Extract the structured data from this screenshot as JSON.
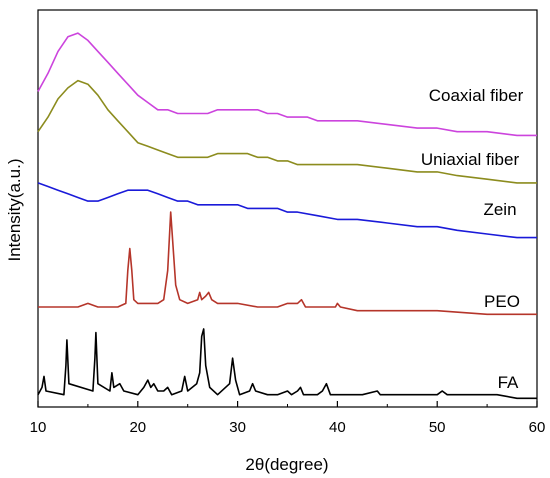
{
  "chart_data": {
    "type": "line",
    "title": "",
    "xlabel": "2θ(degree)",
    "ylabel": "Intensity(a.u.)",
    "xlim": [
      10,
      60
    ],
    "x_ticks": [
      "10",
      "20",
      "30",
      "40",
      "50",
      "60"
    ],
    "y_ticks": [],
    "grid": false,
    "legend": "inline labels at right",
    "series": [
      {
        "name": "Coaxial fiber",
        "color": "#cc44dd",
        "points": [
          [
            10,
            0.85
          ],
          [
            11,
            0.9
          ],
          [
            12,
            0.96
          ],
          [
            13,
            1.0
          ],
          [
            14,
            1.01
          ],
          [
            15,
            0.99
          ],
          [
            16,
            0.96
          ],
          [
            17,
            0.93
          ],
          [
            18,
            0.9
          ],
          [
            19,
            0.87
          ],
          [
            20,
            0.84
          ],
          [
            21,
            0.82
          ],
          [
            22,
            0.8
          ],
          [
            23,
            0.8
          ],
          [
            24,
            0.79
          ],
          [
            25,
            0.79
          ],
          [
            26,
            0.79
          ],
          [
            27,
            0.79
          ],
          [
            28,
            0.8
          ],
          [
            29,
            0.8
          ],
          [
            30,
            0.8
          ],
          [
            31,
            0.8
          ],
          [
            32,
            0.8
          ],
          [
            33,
            0.79
          ],
          [
            34,
            0.79
          ],
          [
            35,
            0.78
          ],
          [
            36,
            0.78
          ],
          [
            37,
            0.78
          ],
          [
            38,
            0.77
          ],
          [
            40,
            0.77
          ],
          [
            42,
            0.77
          ],
          [
            45,
            0.76
          ],
          [
            48,
            0.75
          ],
          [
            50,
            0.75
          ],
          [
            52,
            0.74
          ],
          [
            55,
            0.74
          ],
          [
            58,
            0.73
          ],
          [
            60,
            0.73
          ]
        ]
      },
      {
        "name": "Uniaxial fiber",
        "color": "#8c8c1e",
        "points": [
          [
            10,
            0.74
          ],
          [
            11,
            0.78
          ],
          [
            12,
            0.83
          ],
          [
            13,
            0.86
          ],
          [
            14,
            0.88
          ],
          [
            15,
            0.87
          ],
          [
            16,
            0.84
          ],
          [
            17,
            0.8
          ],
          [
            18,
            0.77
          ],
          [
            19,
            0.74
          ],
          [
            20,
            0.71
          ],
          [
            21,
            0.7
          ],
          [
            22,
            0.69
          ],
          [
            23,
            0.68
          ],
          [
            24,
            0.67
          ],
          [
            25,
            0.67
          ],
          [
            26,
            0.67
          ],
          [
            27,
            0.67
          ],
          [
            28,
            0.68
          ],
          [
            29,
            0.68
          ],
          [
            30,
            0.68
          ],
          [
            31,
            0.68
          ],
          [
            32,
            0.67
          ],
          [
            33,
            0.67
          ],
          [
            34,
            0.66
          ],
          [
            35,
            0.66
          ],
          [
            36,
            0.65
          ],
          [
            38,
            0.65
          ],
          [
            40,
            0.65
          ],
          [
            42,
            0.65
          ],
          [
            45,
            0.64
          ],
          [
            48,
            0.63
          ],
          [
            50,
            0.63
          ],
          [
            52,
            0.62
          ],
          [
            55,
            0.61
          ],
          [
            58,
            0.6
          ],
          [
            60,
            0.6
          ]
        ]
      },
      {
        "name": "Zein",
        "color": "#1a1ad9",
        "points": [
          [
            10,
            0.6
          ],
          [
            11,
            0.59
          ],
          [
            12,
            0.58
          ],
          [
            13,
            0.57
          ],
          [
            14,
            0.56
          ],
          [
            15,
            0.55
          ],
          [
            16,
            0.55
          ],
          [
            17,
            0.56
          ],
          [
            18,
            0.57
          ],
          [
            19,
            0.58
          ],
          [
            20,
            0.58
          ],
          [
            21,
            0.58
          ],
          [
            22,
            0.57
          ],
          [
            23,
            0.56
          ],
          [
            24,
            0.55
          ],
          [
            25,
            0.55
          ],
          [
            26,
            0.54
          ],
          [
            27,
            0.54
          ],
          [
            28,
            0.54
          ],
          [
            29,
            0.54
          ],
          [
            30,
            0.54
          ],
          [
            31,
            0.53
          ],
          [
            32,
            0.53
          ],
          [
            33,
            0.53
          ],
          [
            34,
            0.53
          ],
          [
            35,
            0.52
          ],
          [
            36,
            0.52
          ],
          [
            38,
            0.51
          ],
          [
            40,
            0.5
          ],
          [
            42,
            0.5
          ],
          [
            45,
            0.49
          ],
          [
            48,
            0.48
          ],
          [
            50,
            0.48
          ],
          [
            52,
            0.47
          ],
          [
            55,
            0.46
          ],
          [
            58,
            0.45
          ],
          [
            60,
            0.45
          ]
        ]
      },
      {
        "name": "PEO",
        "color": "#b5352a",
        "points": [
          [
            10,
            0.26
          ],
          [
            12,
            0.26
          ],
          [
            14,
            0.26
          ],
          [
            15,
            0.27
          ],
          [
            16,
            0.26
          ],
          [
            17,
            0.26
          ],
          [
            18,
            0.26
          ],
          [
            18.8,
            0.27
          ],
          [
            19.0,
            0.36
          ],
          [
            19.2,
            0.42
          ],
          [
            19.4,
            0.36
          ],
          [
            19.6,
            0.28
          ],
          [
            20,
            0.27
          ],
          [
            21,
            0.27
          ],
          [
            22,
            0.27
          ],
          [
            22.6,
            0.28
          ],
          [
            23.0,
            0.36
          ],
          [
            23.3,
            0.52
          ],
          [
            23.5,
            0.44
          ],
          [
            23.8,
            0.32
          ],
          [
            24.2,
            0.28
          ],
          [
            25,
            0.27
          ],
          [
            26,
            0.28
          ],
          [
            26.2,
            0.3
          ],
          [
            26.4,
            0.28
          ],
          [
            26.8,
            0.29
          ],
          [
            27.1,
            0.3
          ],
          [
            27.4,
            0.28
          ],
          [
            28,
            0.27
          ],
          [
            30,
            0.27
          ],
          [
            32,
            0.26
          ],
          [
            34,
            0.26
          ],
          [
            35,
            0.27
          ],
          [
            36,
            0.27
          ],
          [
            36.4,
            0.28
          ],
          [
            36.8,
            0.26
          ],
          [
            38,
            0.26
          ],
          [
            39.8,
            0.26
          ],
          [
            40,
            0.27
          ],
          [
            40.3,
            0.26
          ],
          [
            42,
            0.25
          ],
          [
            45,
            0.25
          ],
          [
            48,
            0.25
          ],
          [
            50,
            0.25
          ],
          [
            55,
            0.24
          ],
          [
            60,
            0.24
          ]
        ]
      },
      {
        "name": "FA",
        "color": "#000000",
        "points": [
          [
            10.0,
            0.02
          ],
          [
            10.4,
            0.04
          ],
          [
            10.6,
            0.07
          ],
          [
            10.8,
            0.03
          ],
          [
            12.6,
            0.02
          ],
          [
            12.8,
            0.1
          ],
          [
            12.9,
            0.17
          ],
          [
            13.1,
            0.05
          ],
          [
            15.5,
            0.03
          ],
          [
            15.7,
            0.12
          ],
          [
            15.8,
            0.19
          ],
          [
            16.0,
            0.05
          ],
          [
            17.2,
            0.03
          ],
          [
            17.4,
            0.08
          ],
          [
            17.6,
            0.04
          ],
          [
            18.2,
            0.05
          ],
          [
            18.6,
            0.03
          ],
          [
            20.0,
            0.02
          ],
          [
            20.6,
            0.04
          ],
          [
            21.0,
            0.06
          ],
          [
            21.3,
            0.04
          ],
          [
            21.6,
            0.05
          ],
          [
            22.0,
            0.03
          ],
          [
            22.6,
            0.03
          ],
          [
            23.0,
            0.04
          ],
          [
            23.4,
            0.02
          ],
          [
            24.4,
            0.03
          ],
          [
            24.7,
            0.07
          ],
          [
            25.0,
            0.03
          ],
          [
            25.9,
            0.05
          ],
          [
            26.2,
            0.08
          ],
          [
            26.4,
            0.18
          ],
          [
            26.6,
            0.2
          ],
          [
            26.8,
            0.1
          ],
          [
            27.2,
            0.04
          ],
          [
            28.0,
            0.02
          ],
          [
            29.2,
            0.05
          ],
          [
            29.5,
            0.12
          ],
          [
            29.8,
            0.06
          ],
          [
            30.2,
            0.02
          ],
          [
            31.2,
            0.03
          ],
          [
            31.5,
            0.05
          ],
          [
            31.8,
            0.03
          ],
          [
            33.0,
            0.02
          ],
          [
            34.0,
            0.02
          ],
          [
            35.0,
            0.03
          ],
          [
            35.4,
            0.02
          ],
          [
            36.0,
            0.03
          ],
          [
            36.3,
            0.04
          ],
          [
            36.6,
            0.02
          ],
          [
            38.0,
            0.02
          ],
          [
            38.5,
            0.03
          ],
          [
            38.9,
            0.05
          ],
          [
            39.3,
            0.02
          ],
          [
            41.0,
            0.02
          ],
          [
            42.5,
            0.02
          ],
          [
            44.0,
            0.03
          ],
          [
            44.3,
            0.02
          ],
          [
            46.0,
            0.02
          ],
          [
            48.0,
            0.02
          ],
          [
            50.0,
            0.02
          ],
          [
            50.5,
            0.03
          ],
          [
            51.0,
            0.02
          ],
          [
            54.0,
            0.02
          ],
          [
            56.0,
            0.02
          ],
          [
            58.0,
            0.01
          ],
          [
            60.0,
            0.01
          ]
        ]
      }
    ]
  }
}
